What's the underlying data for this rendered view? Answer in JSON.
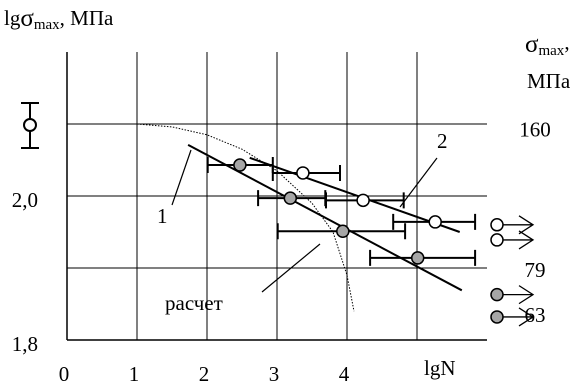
{
  "chart_data": {
    "type": "scatter",
    "ylabel": {
      "prefix": "lg",
      "symbol": "σ",
      "sub": "max",
      "unit": ", МПа"
    },
    "y2label": {
      "symbol": "σ",
      "sub": "max",
      "comma": ",",
      "unit": "МПа"
    },
    "xlabel": "lgN",
    "xlim": [
      0,
      6
    ],
    "ylim": [
      1.8,
      2.2
    ],
    "xticks": [
      0,
      1,
      2,
      3,
      4
    ],
    "yticks": [
      {
        "value": 1.8,
        "label": "1,8"
      },
      {
        "value": 2.0,
        "label": "2,0"
      }
    ],
    "xgrid": [
      1,
      2,
      3,
      4,
      5
    ],
    "ygrid": [
      1.9,
      2.0,
      2.1
    ],
    "y2scale": "log",
    "y2lim": [
      55,
      234
    ],
    "y2ticks": [
      160,
      79,
      63
    ],
    "series": [
      {
        "name": "1",
        "color": "#a6a6a6",
        "x": [
          2.47,
          3.19,
          3.94,
          5.01
        ],
        "values": [
          2.043,
          1.997,
          1.951,
          1.914
        ],
        "x_min": [
          2.01,
          2.73,
          3.01,
          4.33
        ],
        "x_max": [
          2.94,
          3.69,
          4.83,
          5.83
        ],
        "runouts": [
          1.863,
          1.832
        ],
        "fit_x": [
          1.73,
          5.64
        ],
        "fit_y": [
          2.071,
          1.869
        ]
      },
      {
        "name": "2",
        "color": "#ffffff",
        "x": [
          3.37,
          4.23,
          5.26
        ],
        "values": [
          2.032,
          1.994,
          1.964
        ],
        "x_min": [
          2.94,
          3.7,
          4.66
        ],
        "x_max": [
          3.9,
          4.81,
          5.83
        ],
        "runouts": [
          1.96,
          1.939
        ],
        "fit_x": [
          2.61,
          5.61
        ],
        "fit_y": [
          2.053,
          1.95
        ]
      }
    ],
    "calc": {
      "name": "расчет",
      "x": [
        0.4,
        1.0,
        1.5,
        2.0,
        2.5,
        3.0,
        3.5,
        3.8,
        4.0,
        4.1
      ],
      "values": [
        2.1,
        2.1,
        2.096,
        2.085,
        2.065,
        2.035,
        1.99,
        1.95,
        1.89,
        1.84
      ]
    }
  }
}
